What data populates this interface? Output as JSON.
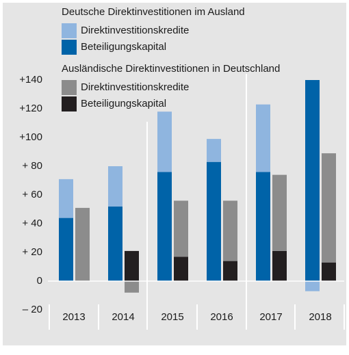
{
  "chart_data": {
    "type": "bar",
    "categories": [
      "2013",
      "2014",
      "2015",
      "2016",
      "2017",
      "2018"
    ],
    "groups": [
      {
        "title": "Deutsche Direktinvestitionen im Ausland",
        "series": [
          {
            "name": "Direktinvestitionskredite",
            "color": "#8fb5df",
            "values": [
              27,
              28,
              42,
              16,
              47,
              -7
            ]
          },
          {
            "name": "Beteiligungskapital",
            "color": "#0063a8",
            "values": [
              44,
              52,
              76,
              83,
              76,
              140
            ]
          }
        ]
      },
      {
        "title": "Ausländische Direktinvestitionen in Deutschland",
        "series": [
          {
            "name": "Direktinvestitionskredite",
            "color": "#8c8c8c",
            "values": [
              51,
              -8,
              39,
              42,
              53,
              76
            ]
          },
          {
            "name": "Beteiligungskapital",
            "color": "#231f20",
            "values": [
              0,
              21,
              17,
              14,
              21,
              13
            ]
          }
        ]
      }
    ],
    "ylim": [
      -20,
      140
    ],
    "yticks": [
      {
        "value": -20,
        "label": "– 20"
      },
      0,
      {
        "value": 20,
        "label": "+ 20"
      },
      {
        "value": 40,
        "label": "+ 40"
      },
      {
        "value": 60,
        "label": "+ 60"
      },
      {
        "value": 80,
        "label": "+ 80"
      },
      {
        "value": 100,
        "label": "+100"
      },
      {
        "value": 120,
        "label": "+120"
      },
      {
        "value": 140,
        "label": "+140"
      }
    ],
    "stacked": true
  }
}
